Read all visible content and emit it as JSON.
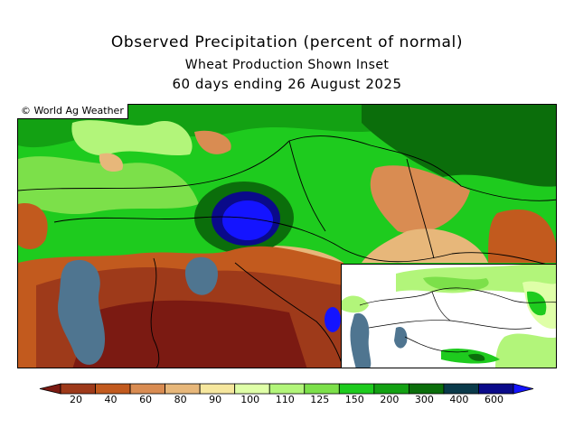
{
  "titles": {
    "main": "Observed Precipitation (percent of normal)",
    "sub": "Wheat Production Shown Inset",
    "period": "60 days ending 26 August 2025"
  },
  "credit": "© World Ag Weather",
  "legend": {
    "colors": [
      "#7b1a12",
      "#9e3a1a",
      "#c25a1e",
      "#d98c52",
      "#e7b77a",
      "#f6e79e",
      "#dfffa8",
      "#b2f57a",
      "#7ce04a",
      "#1ecb1e",
      "#13a113",
      "#0b6e0b",
      "#0a3a4a",
      "#0a0a8a",
      "#1414ff"
    ],
    "ticks": [
      "20",
      "40",
      "60",
      "80",
      "90",
      "100",
      "110",
      "125",
      "150",
      "200",
      "300",
      "400",
      "600"
    ]
  },
  "colors": {
    "water": "#4f7590",
    "frame": "#000000"
  }
}
